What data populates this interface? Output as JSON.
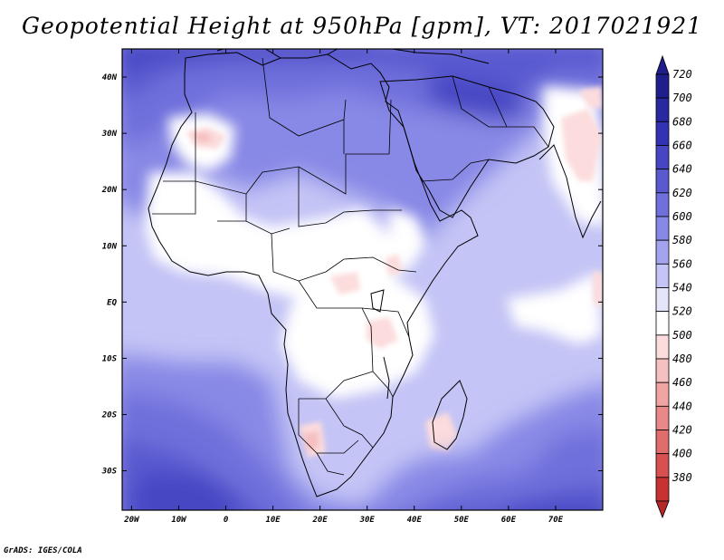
{
  "title": "Geopotential Height at 950hPa [gpm], VT: 2017021921",
  "credit": "GrADS: IGES/COLA",
  "map": {
    "lon_range": [
      -22,
      80
    ],
    "lat_range": [
      -37,
      45
    ],
    "lat_labels": [
      {
        "lat": 40,
        "label": "40N"
      },
      {
        "lat": 30,
        "label": "30N"
      },
      {
        "lat": 20,
        "label": "20N"
      },
      {
        "lat": 10,
        "label": "10N"
      },
      {
        "lat": 0,
        "label": "EQ"
      },
      {
        "lat": -10,
        "label": "10S"
      },
      {
        "lat": -20,
        "label": "20S"
      },
      {
        "lat": -30,
        "label": "30S"
      }
    ],
    "lon_labels": [
      {
        "lon": -20,
        "label": "20W"
      },
      {
        "lon": -10,
        "label": "10W"
      },
      {
        "lon": 0,
        "label": "0"
      },
      {
        "lon": 10,
        "label": "10E"
      },
      {
        "lon": 20,
        "label": "20E"
      },
      {
        "lon": 30,
        "label": "30E"
      },
      {
        "lon": 40,
        "label": "40E"
      },
      {
        "lon": 50,
        "label": "50E"
      },
      {
        "lon": 60,
        "label": "60E"
      },
      {
        "lon": 70,
        "label": "70E"
      }
    ]
  },
  "colorbar": {
    "levels": [
      {
        "label": "720",
        "color": "#1e1e8c"
      },
      {
        "label": "700",
        "color": "#2828a0"
      },
      {
        "label": "680",
        "color": "#3232b4"
      },
      {
        "label": "660",
        "color": "#4646c4"
      },
      {
        "label": "640",
        "color": "#5a5ad0"
      },
      {
        "label": "620",
        "color": "#7070dc"
      },
      {
        "label": "600",
        "color": "#8888e6"
      },
      {
        "label": "580",
        "color": "#a4a4ee"
      },
      {
        "label": "560",
        "color": "#c4c4f6"
      },
      {
        "label": "540",
        "color": "#e4e4fa"
      },
      {
        "label": "520",
        "color": "#ffffff"
      },
      {
        "label": "500",
        "color": "#fcdcdc"
      },
      {
        "label": "480",
        "color": "#f6c0c0"
      },
      {
        "label": "460",
        "color": "#f0a4a4"
      },
      {
        "label": "440",
        "color": "#e88888"
      },
      {
        "label": "420",
        "color": "#e06c6c"
      },
      {
        "label": "400",
        "color": "#d85050"
      },
      {
        "label": "380",
        "color": "#c83232"
      }
    ],
    "bottom_color": "#b42828"
  }
}
